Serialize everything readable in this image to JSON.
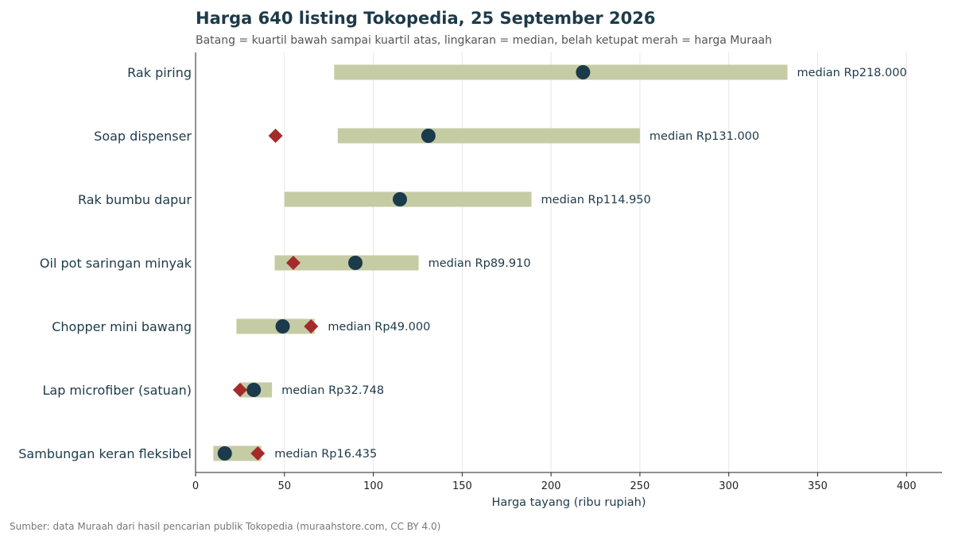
{
  "title": "Harga 640 listing Tokopedia, 25 September 2026",
  "subtitle": "Batang = kuartil bawah sampai kuartil atas, lingkaran = median, belah ketupat merah = harga Muraah",
  "source": "Sumber: data Muraah dari hasil pencarian publik Tokopedia (muraahstore.com, CC BY 4.0)",
  "colors": {
    "bar": "#c5cca4",
    "median": "#1b3a4b",
    "muraah": "#a52a2a",
    "grid": "#e6e6e6",
    "axis": "#222222",
    "text": "#1d3a4a"
  },
  "chart_data": {
    "type": "range-bar",
    "xlabel": "Harga tayang (ribu rupiah)",
    "xlim": [
      0,
      420
    ],
    "xticks": [
      0,
      50,
      100,
      150,
      200,
      250,
      300,
      350,
      400
    ],
    "grid": "vertical",
    "categories": [
      {
        "name": "Rak piring",
        "q1": 78,
        "q3": 333,
        "median": 218,
        "muraah": null,
        "label": "median Rp218.000"
      },
      {
        "name": "Soap dispenser",
        "q1": 80,
        "q3": 250,
        "median": 131,
        "muraah": 45,
        "label": "median Rp131.000"
      },
      {
        "name": "Rak bumbu dapur",
        "q1": 50,
        "q3": 189,
        "median": 114.95,
        "muraah": null,
        "label": "median Rp114.950"
      },
      {
        "name": "Oil pot saringan minyak",
        "q1": 44.5,
        "q3": 125.5,
        "median": 89.91,
        "muraah": 55,
        "label": "median Rp89.910"
      },
      {
        "name": "Chopper mini bawang",
        "q1": 23,
        "q3": 67,
        "median": 49,
        "muraah": 65,
        "label": "median Rp49.000"
      },
      {
        "name": "Lap microfiber (satuan)",
        "q1": 25,
        "q3": 43,
        "median": 32.748,
        "muraah": 25,
        "label": "median Rp32.748"
      },
      {
        "name": "Sambungan keran fleksibel",
        "q1": 10,
        "q3": 37,
        "median": 16.435,
        "muraah": 35,
        "label": "median Rp16.435"
      }
    ]
  }
}
